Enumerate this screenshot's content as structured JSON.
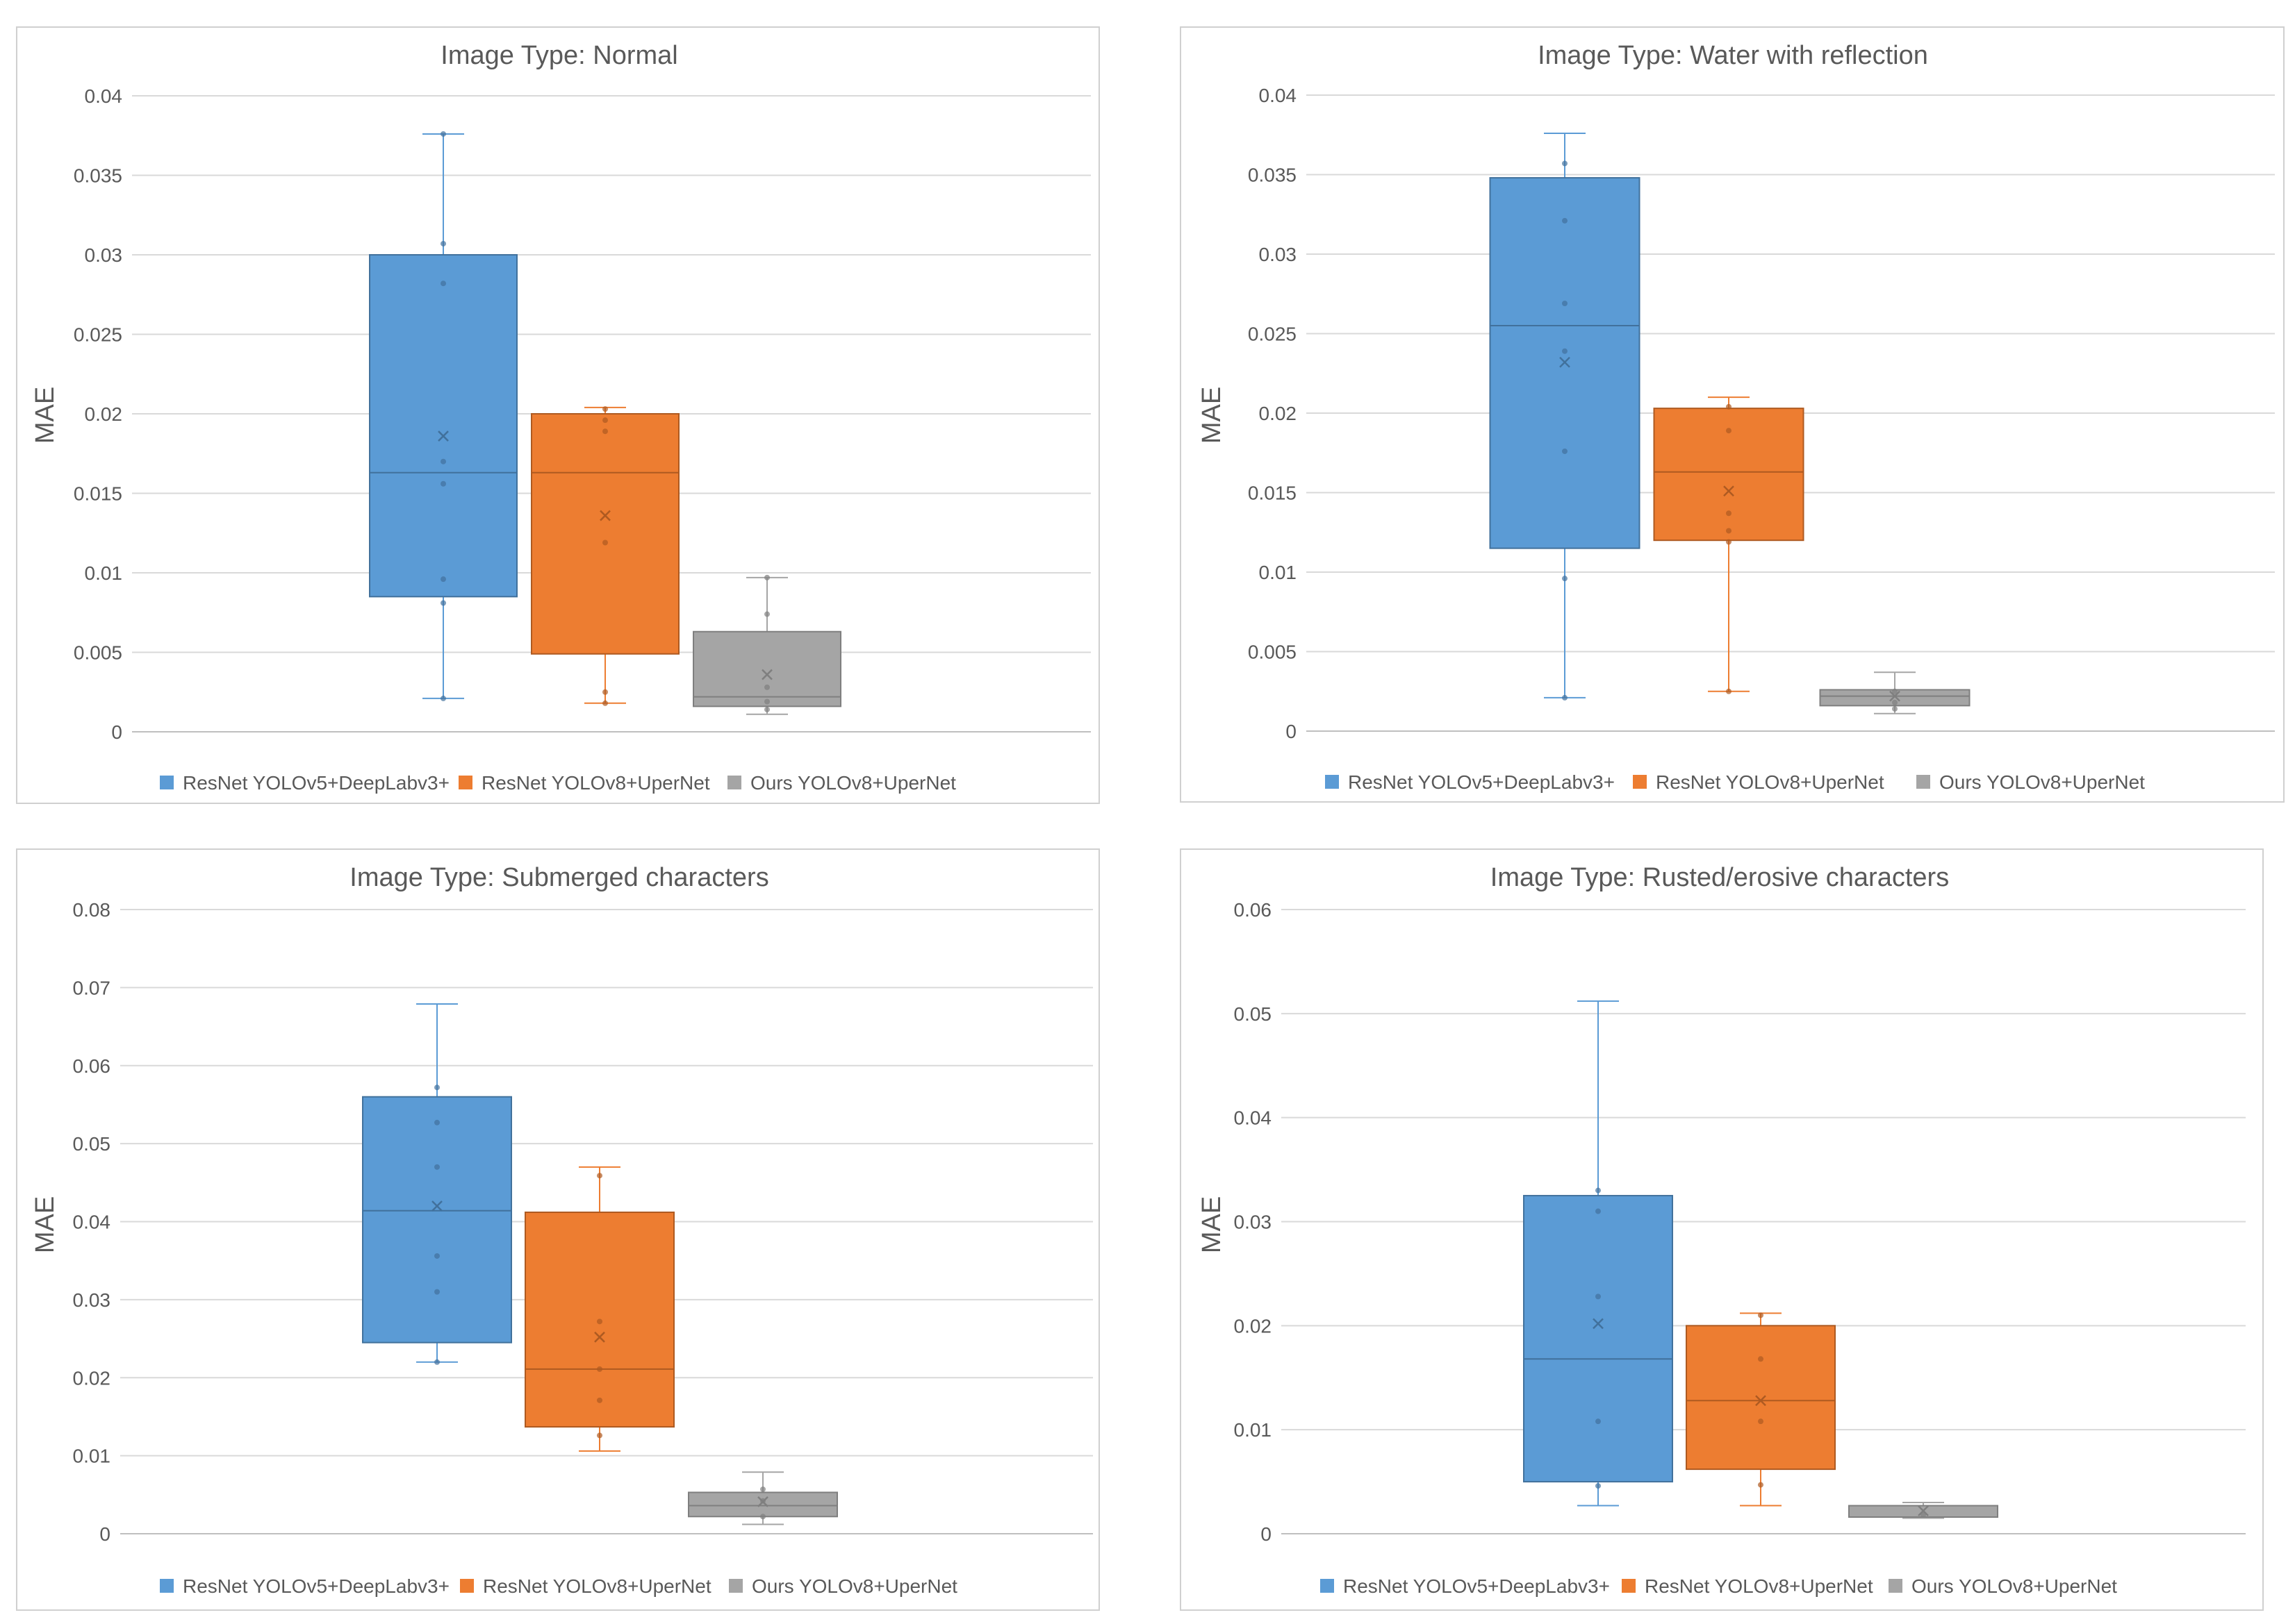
{
  "legend": [
    "ResNet YOLOv5+DeepLabv3+",
    "ResNet YOLOv8+UperNet",
    "Ours YOLOv8+UperNet"
  ],
  "colors": [
    "#5B9BD5",
    "#ED7D31",
    "#A5A5A5"
  ],
  "strokes": [
    "#41719C",
    "#AE5A21",
    "#7F7F7F"
  ],
  "chart_data": [
    {
      "type": "box",
      "title": "Image Type: Normal",
      "ylabel": "MAE",
      "ylim": [
        0,
        0.04
      ],
      "yticks": [
        "0",
        "0.005",
        "0.01",
        "0.015",
        "0.02",
        "0.025",
        "0.03",
        "0.035",
        "0.04"
      ],
      "series": [
        {
          "name": "ResNet YOLOv5+DeepLabv3+",
          "min": 0.0021,
          "q1": 0.0085,
          "median": 0.0163,
          "q3": 0.03,
          "max": 0.0376,
          "mean": 0.0186,
          "points": [
            0.0376,
            0.0307,
            0.0282,
            0.017,
            0.0156,
            0.0096,
            0.0081,
            0.0021
          ]
        },
        {
          "name": "ResNet YOLOv8+UperNet",
          "min": 0.0018,
          "q1": 0.0049,
          "median": 0.0163,
          "q3": 0.02,
          "max": 0.0204,
          "mean": 0.0136,
          "points": [
            0.0203,
            0.0196,
            0.0189,
            0.0119,
            0.0025,
            0.0018
          ]
        },
        {
          "name": "Ours YOLOv8+UperNet",
          "min": 0.0011,
          "q1": 0.0016,
          "median": 0.0022,
          "q3": 0.0063,
          "max": 0.0097,
          "mean": 0.0036,
          "points": [
            0.0097,
            0.0074,
            0.0028,
            0.0019,
            0.0014
          ]
        }
      ]
    },
    {
      "type": "box",
      "title": "Image Type: Water with reflection",
      "ylabel": "MAE",
      "ylim": [
        0,
        0.04
      ],
      "yticks": [
        "0",
        "0.005",
        "0.01",
        "0.015",
        "0.02",
        "0.025",
        "0.03",
        "0.035",
        "0.04"
      ],
      "series": [
        {
          "name": "ResNet YOLOv5+DeepLabv3+",
          "min": 0.0021,
          "q1": 0.0115,
          "median": 0.0255,
          "q3": 0.0348,
          "max": 0.0376,
          "mean": 0.0232,
          "points": [
            0.0357,
            0.0321,
            0.0269,
            0.0239,
            0.0176,
            0.0096,
            0.0021
          ]
        },
        {
          "name": "ResNet YOLOv8+UperNet",
          "min": 0.0025,
          "q1": 0.012,
          "median": 0.0163,
          "q3": 0.0203,
          "max": 0.021,
          "mean": 0.0151,
          "points": [
            0.0204,
            0.0189,
            0.0137,
            0.0126,
            0.0119,
            0.0025
          ]
        },
        {
          "name": "Ours YOLOv8+UperNet",
          "min": 0.0011,
          "q1": 0.0016,
          "median": 0.0022,
          "q3": 0.0026,
          "max": 0.0037,
          "mean": 0.0022,
          "points": [
            0.0025,
            0.0018,
            0.0014
          ]
        }
      ]
    },
    {
      "type": "box",
      "title": "Image Type: Submerged characters",
      "ylabel": "MAE",
      "ylim": [
        0,
        0.08
      ],
      "yticks": [
        "0",
        "0.01",
        "0.02",
        "0.03",
        "0.04",
        "0.05",
        "0.06",
        "0.07",
        "0.08"
      ],
      "series": [
        {
          "name": "ResNet YOLOv5+DeepLabv3+",
          "min": 0.022,
          "q1": 0.0245,
          "median": 0.0414,
          "q3": 0.056,
          "max": 0.0679,
          "mean": 0.042,
          "points": [
            0.0572,
            0.0527,
            0.047,
            0.0356,
            0.031,
            0.022
          ]
        },
        {
          "name": "ResNet YOLOv8+UperNet",
          "min": 0.0106,
          "q1": 0.0137,
          "median": 0.0211,
          "q3": 0.0412,
          "max": 0.047,
          "mean": 0.0252,
          "points": [
            0.0459,
            0.0272,
            0.0211,
            0.0171,
            0.0126
          ]
        },
        {
          "name": "Ours YOLOv8+UperNet",
          "min": 0.0012,
          "q1": 0.0022,
          "median": 0.0036,
          "q3": 0.0053,
          "max": 0.0079,
          "mean": 0.0041,
          "points": [
            0.0057,
            0.0042,
            0.0022
          ]
        }
      ]
    },
    {
      "type": "box",
      "title": "Image Type: Rusted/erosive characters",
      "ylabel": "MAE",
      "ylim": [
        0,
        0.06
      ],
      "yticks": [
        "0",
        "0.01",
        "0.02",
        "0.03",
        "0.04",
        "0.05",
        "0.06"
      ],
      "series": [
        {
          "name": "ResNet YOLOv5+DeepLabv3+",
          "min": 0.0027,
          "q1": 0.005,
          "median": 0.0168,
          "q3": 0.0325,
          "max": 0.0512,
          "mean": 0.0202,
          "points": [
            0.033,
            0.031,
            0.0228,
            0.0108,
            0.0046
          ]
        },
        {
          "name": "ResNet YOLOv8+UperNet",
          "min": 0.0027,
          "q1": 0.0062,
          "median": 0.0128,
          "q3": 0.02,
          "max": 0.0212,
          "mean": 0.0128,
          "points": [
            0.021,
            0.0168,
            0.0108,
            0.0047
          ]
        },
        {
          "name": "Ours YOLOv8+UperNet",
          "min": 0.0015,
          "q1": 0.0016,
          "median": 0.0016,
          "q3": 0.0027,
          "max": 0.003,
          "mean": 0.0022,
          "points": [
            0.0018
          ]
        }
      ]
    }
  ]
}
